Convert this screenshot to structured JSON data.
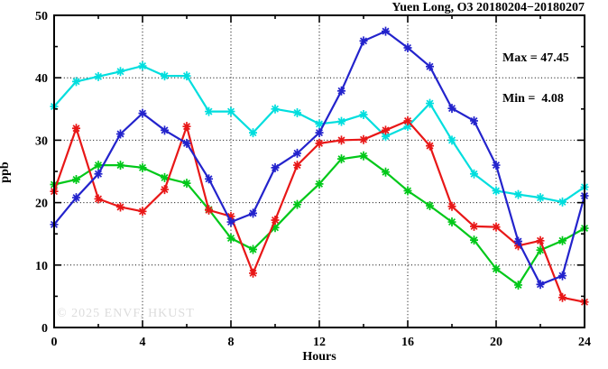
{
  "header": {
    "title": "Yuen Long, O3 20180204−20180207"
  },
  "annotation": {
    "max": "Max = 47.45",
    "min": "Min =  4.08"
  },
  "axes": {
    "xlabel": "Hours",
    "ylabel": "ppb"
  },
  "watermark": "© 2025 ENVF, HKUST",
  "colors": {
    "background": "#ffffff",
    "frame": "#000000",
    "grid": "#000000",
    "watermark": "#dcdcdc",
    "series_blue": "#2323cc",
    "series_red": "#e81717",
    "series_cyan": "#00dede",
    "series_green": "#00c819"
  },
  "chart_data": {
    "type": "line",
    "title": "Yuen Long, O3 20180204−20180207",
    "xlabel": "Hours",
    "ylabel": "ppb",
    "xlim": [
      0,
      24
    ],
    "ylim": [
      0,
      50
    ],
    "xticks": [
      0,
      4,
      8,
      12,
      16,
      20,
      24
    ],
    "x_minor_ticks": [
      2,
      6,
      10,
      14,
      18,
      22
    ],
    "yticks": [
      0,
      10,
      20,
      30,
      40,
      50
    ],
    "y_minor_ticks": [
      5,
      15,
      25,
      35,
      45
    ],
    "grid_x": [
      4,
      8,
      12,
      16,
      20
    ],
    "grid_y": [
      10,
      20,
      30,
      40
    ],
    "grid_style": "dotted",
    "legend_position": "none",
    "marker": "asterisk",
    "stats": {
      "max": 47.45,
      "min": 4.08
    },
    "x": [
      0,
      1,
      2,
      3,
      4,
      5,
      6,
      7,
      8,
      9,
      10,
      11,
      12,
      13,
      14,
      15,
      16,
      17,
      18,
      19,
      20,
      21,
      22,
      23,
      24
    ],
    "series": [
      {
        "name": "green",
        "color": "#00c819",
        "values": [
          22.9,
          23.7,
          26.0,
          26.0,
          25.6,
          24.0,
          23.1,
          18.9,
          14.3,
          12.5,
          16.0,
          19.7,
          23.0,
          27.0,
          27.5,
          24.9,
          21.9,
          19.5,
          16.9,
          14.0,
          9.4,
          6.8,
          12.4,
          13.9,
          15.9
        ]
      },
      {
        "name": "cyan",
        "color": "#00dede",
        "values": [
          35.4,
          39.4,
          40.2,
          41.0,
          41.9,
          40.3,
          40.3,
          34.6,
          34.6,
          31.2,
          35.0,
          34.4,
          32.6,
          33.0,
          34.1,
          30.6,
          32.2,
          35.9,
          30.0,
          24.6,
          21.9,
          21.3,
          20.8,
          20.1,
          22.5
        ]
      },
      {
        "name": "red",
        "color": "#e81717",
        "values": [
          21.8,
          31.9,
          20.6,
          19.3,
          18.6,
          22.1,
          32.2,
          18.8,
          17.8,
          8.7,
          17.2,
          26.0,
          29.5,
          30.0,
          30.1,
          31.6,
          33.1,
          29.1,
          19.4,
          16.2,
          16.1,
          13.1,
          13.9,
          4.8,
          4.08
        ]
      },
      {
        "name": "blue",
        "color": "#2323cc",
        "values": [
          16.5,
          20.8,
          24.6,
          31.0,
          34.3,
          31.6,
          29.5,
          23.8,
          16.9,
          18.3,
          25.6,
          27.9,
          31.2,
          37.9,
          45.9,
          47.45,
          44.8,
          41.8,
          35.1,
          33.1,
          26.0,
          13.8,
          6.9,
          8.3,
          21.1
        ]
      }
    ]
  }
}
